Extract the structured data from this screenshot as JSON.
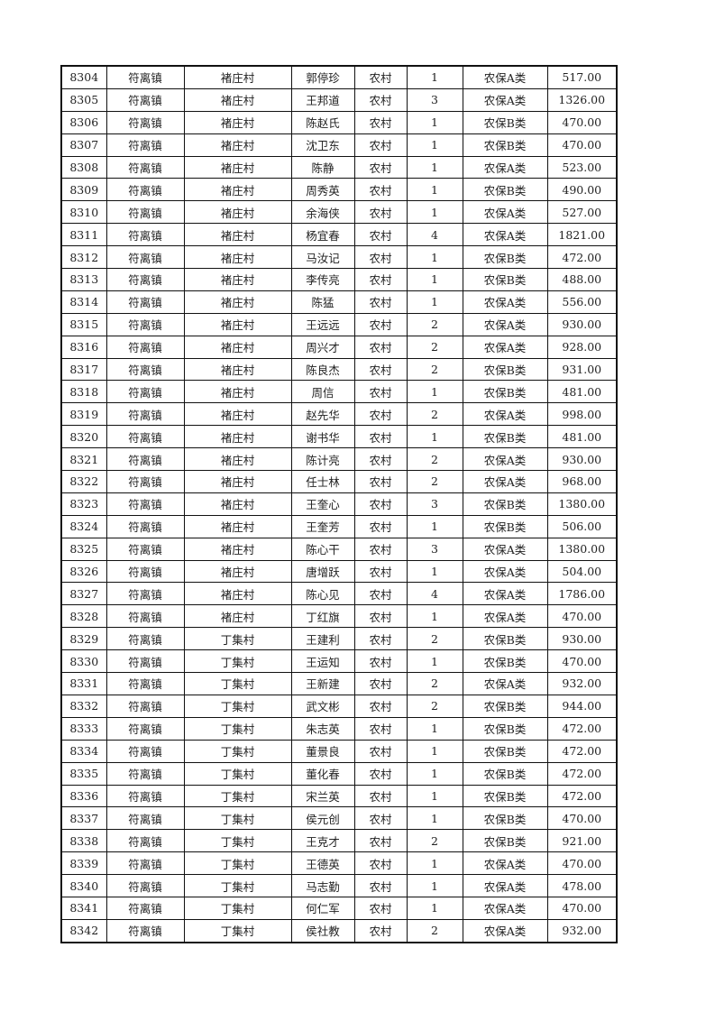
{
  "rows": [
    [
      "8304",
      "符离镇",
      "褚庄村",
      "郭停珍",
      "农村",
      "1",
      "农保A类",
      "517.00"
    ],
    [
      "8305",
      "符离镇",
      "褚庄村",
      "王邦道",
      "农村",
      "3",
      "农保A类",
      "1326.00"
    ],
    [
      "8306",
      "符离镇",
      "褚庄村",
      "陈赵氏",
      "农村",
      "1",
      "农保B类",
      "470.00"
    ],
    [
      "8307",
      "符离镇",
      "褚庄村",
      "沈卫东",
      "农村",
      "1",
      "农保B类",
      "470.00"
    ],
    [
      "8308",
      "符离镇",
      "褚庄村",
      "陈静",
      "农村",
      "1",
      "农保A类",
      "523.00"
    ],
    [
      "8309",
      "符离镇",
      "褚庄村",
      "周秀英",
      "农村",
      "1",
      "农保B类",
      "490.00"
    ],
    [
      "8310",
      "符离镇",
      "褚庄村",
      "余海侠",
      "农村",
      "1",
      "农保A类",
      "527.00"
    ],
    [
      "8311",
      "符离镇",
      "褚庄村",
      "杨宜春",
      "农村",
      "4",
      "农保A类",
      "1821.00"
    ],
    [
      "8312",
      "符离镇",
      "褚庄村",
      "马汝记",
      "农村",
      "1",
      "农保B类",
      "472.00"
    ],
    [
      "8313",
      "符离镇",
      "褚庄村",
      "李传亮",
      "农村",
      "1",
      "农保B类",
      "488.00"
    ],
    [
      "8314",
      "符离镇",
      "褚庄村",
      "陈猛",
      "农村",
      "1",
      "农保A类",
      "556.00"
    ],
    [
      "8315",
      "符离镇",
      "褚庄村",
      "王远远",
      "农村",
      "2",
      "农保A类",
      "930.00"
    ],
    [
      "8316",
      "符离镇",
      "褚庄村",
      "周兴才",
      "农村",
      "2",
      "农保A类",
      "928.00"
    ],
    [
      "8317",
      "符离镇",
      "褚庄村",
      "陈良杰",
      "农村",
      "2",
      "农保B类",
      "931.00"
    ],
    [
      "8318",
      "符离镇",
      "褚庄村",
      "周信",
      "农村",
      "1",
      "农保B类",
      "481.00"
    ],
    [
      "8319",
      "符离镇",
      "褚庄村",
      "赵先华",
      "农村",
      "2",
      "农保A类",
      "998.00"
    ],
    [
      "8320",
      "符离镇",
      "褚庄村",
      "谢书华",
      "农村",
      "1",
      "农保B类",
      "481.00"
    ],
    [
      "8321",
      "符离镇",
      "褚庄村",
      "陈计亮",
      "农村",
      "2",
      "农保A类",
      "930.00"
    ],
    [
      "8322",
      "符离镇",
      "褚庄村",
      "任士林",
      "农村",
      "2",
      "农保A类",
      "968.00"
    ],
    [
      "8323",
      "符离镇",
      "褚庄村",
      "王奎心",
      "农村",
      "3",
      "农保B类",
      "1380.00"
    ],
    [
      "8324",
      "符离镇",
      "褚庄村",
      "王奎芳",
      "农村",
      "1",
      "农保B类",
      "506.00"
    ],
    [
      "8325",
      "符离镇",
      "褚庄村",
      "陈心干",
      "农村",
      "3",
      "农保A类",
      "1380.00"
    ],
    [
      "8326",
      "符离镇",
      "褚庄村",
      "唐增跃",
      "农村",
      "1",
      "农保A类",
      "504.00"
    ],
    [
      "8327",
      "符离镇",
      "褚庄村",
      "陈心见",
      "农村",
      "4",
      "农保A类",
      "1786.00"
    ],
    [
      "8328",
      "符离镇",
      "褚庄村",
      "丁红旗",
      "农村",
      "1",
      "农保A类",
      "470.00"
    ],
    [
      "8329",
      "符离镇",
      "丁集村",
      "王建利",
      "农村",
      "2",
      "农保B类",
      "930.00"
    ],
    [
      "8330",
      "符离镇",
      "丁集村",
      "王运知",
      "农村",
      "1",
      "农保B类",
      "470.00"
    ],
    [
      "8331",
      "符离镇",
      "丁集村",
      "王新建",
      "农村",
      "2",
      "农保A类",
      "932.00"
    ],
    [
      "8332",
      "符离镇",
      "丁集村",
      "武文彬",
      "农村",
      "2",
      "农保B类",
      "944.00"
    ],
    [
      "8333",
      "符离镇",
      "丁集村",
      "朱志英",
      "农村",
      "1",
      "农保B类",
      "472.00"
    ],
    [
      "8334",
      "符离镇",
      "丁集村",
      "董景良",
      "农村",
      "1",
      "农保B类",
      "472.00"
    ],
    [
      "8335",
      "符离镇",
      "丁集村",
      "董化春",
      "农村",
      "1",
      "农保B类",
      "472.00"
    ],
    [
      "8336",
      "符离镇",
      "丁集村",
      "宋兰英",
      "农村",
      "1",
      "农保B类",
      "472.00"
    ],
    [
      "8337",
      "符离镇",
      "丁集村",
      "侯元创",
      "农村",
      "1",
      "农保B类",
      "470.00"
    ],
    [
      "8338",
      "符离镇",
      "丁集村",
      "王克才",
      "农村",
      "2",
      "农保B类",
      "921.00"
    ],
    [
      "8339",
      "符离镇",
      "丁集村",
      "王德英",
      "农村",
      "1",
      "农保A类",
      "470.00"
    ],
    [
      "8340",
      "符离镇",
      "丁集村",
      "马志勤",
      "农村",
      "1",
      "农保A类",
      "478.00"
    ],
    [
      "8341",
      "符离镇",
      "丁集村",
      "何仁军",
      "农村",
      "1",
      "农保A类",
      "470.00"
    ],
    [
      "8342",
      "符离镇",
      "丁集村",
      "侯社教",
      "农村",
      "2",
      "农保A类",
      "932.00"
    ]
  ]
}
